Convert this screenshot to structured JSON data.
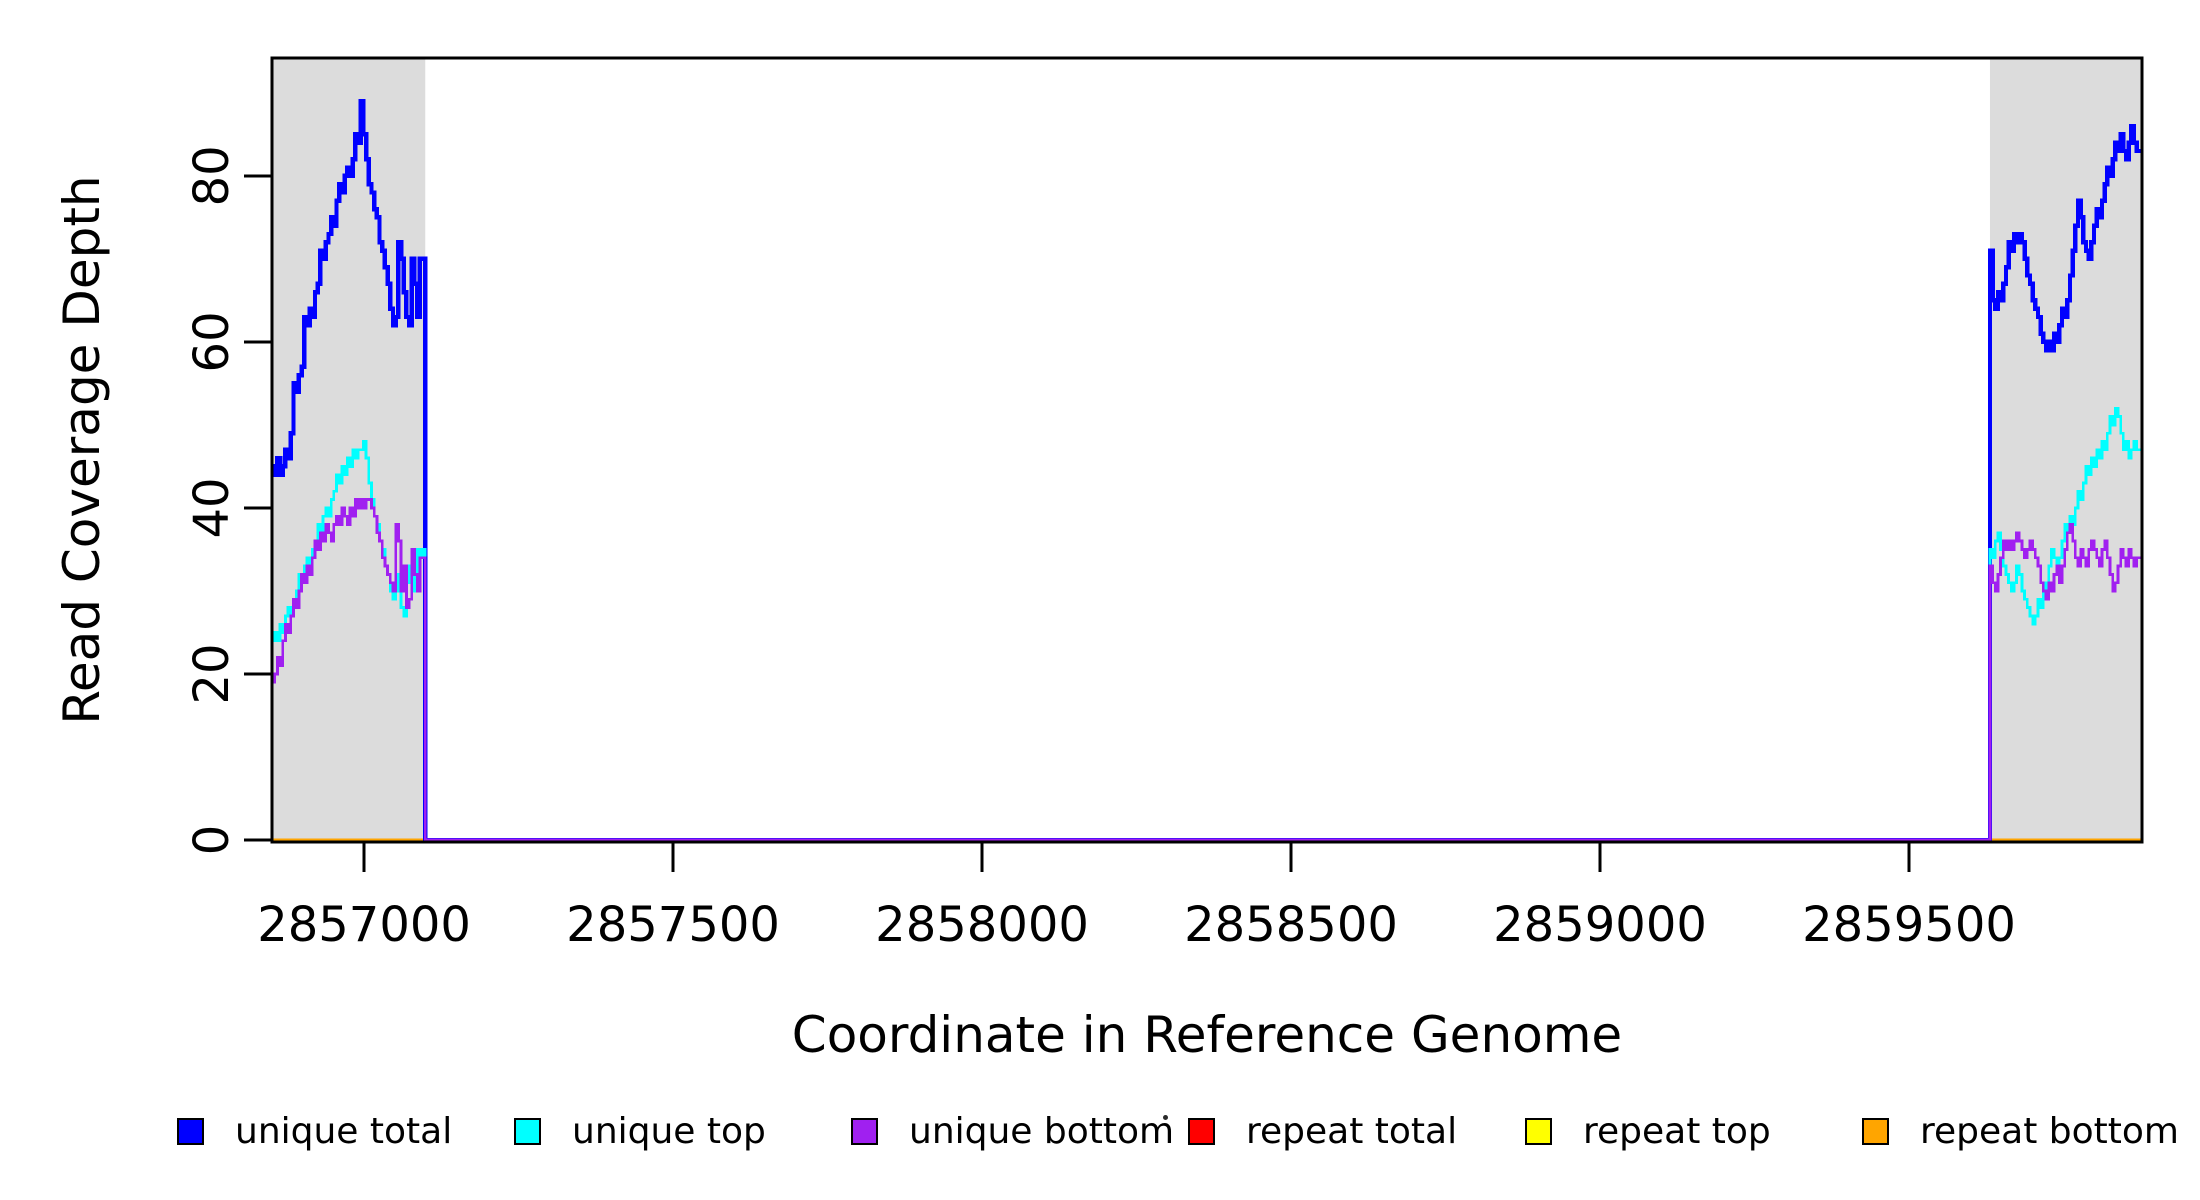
{
  "figure": {
    "x_axis": {
      "label": "Coordinate in Reference Genome",
      "tick_labels": [
        "2857000",
        "2857500",
        "2858000",
        "2858500",
        "2859000",
        "2859500"
      ]
    },
    "y_axis": {
      "label": "Read Coverage Depth",
      "tick_labels": [
        "0",
        "20",
        "40",
        "60",
        "80"
      ]
    }
  },
  "legend": {
    "items": [
      {
        "label": "unique total",
        "color": "#0000FF"
      },
      {
        "label": "unique top",
        "color": "#00FFFF"
      },
      {
        "label": "unique bottom",
        "color": "#A020F0"
      },
      {
        "label": "repeat total",
        "color": "#FF0000"
      },
      {
        "label": "repeat top",
        "color": "#FFFF00"
      },
      {
        "label": "repeat bottom",
        "color": "#FFA500"
      }
    ]
  },
  "chart_data": {
    "type": "line",
    "style": "step-after",
    "title": "",
    "xlabel": "Coordinate in Reference Genome",
    "ylabel": "Read Coverage Depth",
    "x_range": [
      2856851,
      2859877
    ],
    "ylim": [
      0,
      94.2
    ],
    "x_ticks": [
      2857000,
      2857500,
      2858000,
      2858500,
      2859000,
      2859500
    ],
    "y_ticks": [
      0,
      20,
      40,
      60,
      80
    ],
    "grid": false,
    "legend_position": "bottom-horizontal",
    "highlight_regions": [
      {
        "from": 2856851,
        "to": 2857099,
        "color": "#DCDCDC"
      },
      {
        "from": 2859631,
        "to": 2859877,
        "color": "#DCDCDC"
      }
    ],
    "zero_gap": {
      "from": 2857099,
      "to": 2859631
    },
    "series": [
      {
        "name": "repeat total",
        "color": "#FF0000",
        "width": 3,
        "flat_value": 0,
        "left_values": null,
        "right_values": null
      },
      {
        "name": "repeat top",
        "color": "#FFFF00",
        "width": 3,
        "flat_value": 0,
        "left_values": null,
        "right_values": null
      },
      {
        "name": "repeat bottom",
        "color": "#FFA500",
        "width": 3,
        "flat_value": 0,
        "left_values": null,
        "right_values": null
      },
      {
        "name": "unique total",
        "color": "#0000FF",
        "width": 4.4,
        "left_values": [
          45,
          44,
          46,
          44,
          45,
          47,
          46,
          49,
          55,
          54,
          56,
          57,
          63,
          62,
          64,
          63,
          66,
          67,
          71,
          70,
          72,
          73,
          75,
          74,
          77,
          79,
          78,
          80,
          81,
          80,
          82,
          85,
          84,
          89,
          85,
          82,
          79,
          78,
          76,
          75,
          72,
          71,
          69,
          67,
          64,
          62,
          63,
          72,
          70,
          66,
          63,
          62,
          70,
          67,
          63,
          70,
          70
        ],
        "right_values": [
          71,
          65,
          64,
          66,
          65,
          67,
          69,
          72,
          71,
          73,
          72,
          73,
          72,
          70,
          68,
          67,
          65,
          64,
          63,
          61,
          60,
          59,
          60,
          59,
          61,
          60,
          62,
          64,
          63,
          65,
          68,
          71,
          74,
          77,
          75,
          72,
          71,
          70,
          72,
          74,
          76,
          75,
          77,
          79,
          81,
          80,
          82,
          84,
          83,
          85,
          83,
          82,
          84,
          86,
          84,
          83,
          83
        ]
      },
      {
        "name": "unique top",
        "color": "#00FFFF",
        "width": 2.8,
        "left_values": [
          24,
          25,
          24,
          26,
          25,
          27,
          28,
          27,
          29,
          30,
          32,
          31,
          33,
          34,
          33,
          35,
          36,
          38,
          37,
          39,
          40,
          39,
          41,
          42,
          44,
          43,
          45,
          44,
          46,
          45,
          47,
          46,
          47,
          47,
          48,
          46,
          43,
          41,
          39,
          38,
          36,
          35,
          33,
          32,
          30,
          29,
          32,
          30,
          28,
          27,
          31,
          33,
          30,
          32,
          35,
          34,
          35
        ],
        "right_values": [
          35,
          34,
          36,
          37,
          35,
          33,
          32,
          31,
          30,
          31,
          33,
          32,
          30,
          29,
          28,
          27,
          26,
          27,
          29,
          28,
          30,
          31,
          33,
          35,
          34,
          32,
          34,
          36,
          38,
          37,
          39,
          38,
          40,
          42,
          41,
          43,
          45,
          44,
          46,
          45,
          47,
          46,
          48,
          47,
          49,
          51,
          50,
          52,
          51,
          49,
          47,
          48,
          46,
          47,
          48,
          47,
          47
        ]
      },
      {
        "name": "unique bottom",
        "color": "#A020F0",
        "width": 2.8,
        "left_values": [
          19,
          20,
          22,
          21,
          24,
          26,
          25,
          27,
          29,
          28,
          30,
          32,
          31,
          33,
          32,
          34,
          36,
          35,
          37,
          36,
          38,
          37,
          36,
          38,
          39,
          38,
          40,
          39,
          38,
          40,
          39,
          41,
          40,
          41,
          40,
          41,
          41,
          40,
          39,
          37,
          36,
          34,
          33,
          32,
          31,
          30,
          38,
          36,
          30,
          33,
          28,
          29,
          35,
          32,
          30,
          34,
          34
        ],
        "right_values": [
          33,
          31,
          30,
          32,
          34,
          36,
          35,
          36,
          35,
          36,
          37,
          36,
          35,
          34,
          35,
          36,
          35,
          34,
          33,
          31,
          30,
          29,
          31,
          30,
          32,
          33,
          31,
          33,
          35,
          37,
          38,
          36,
          34,
          33,
          35,
          34,
          33,
          35,
          36,
          35,
          34,
          33,
          35,
          36,
          34,
          32,
          30,
          31,
          33,
          35,
          34,
          33,
          35,
          34,
          33,
          34,
          34
        ]
      }
    ]
  }
}
